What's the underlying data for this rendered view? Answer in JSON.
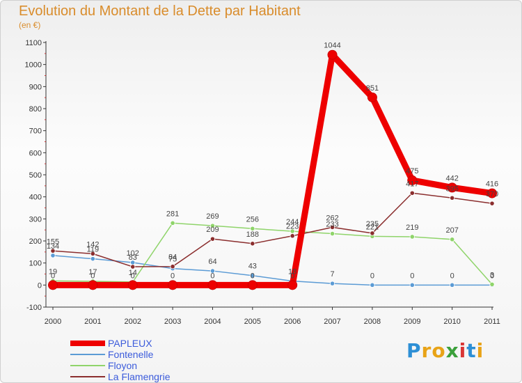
{
  "chart_data": {
    "type": "line",
    "title": "Evolution du Montant de la Dette par Habitant",
    "subtitle": "(en €)",
    "x": [
      "2000",
      "2001",
      "2002",
      "2003",
      "2004",
      "2005",
      "2006",
      "2007",
      "2008",
      "2009",
      "2010",
      "2011"
    ],
    "ylim": [
      -100,
      1100
    ],
    "yticks": [
      -100,
      0,
      100,
      200,
      300,
      400,
      500,
      600,
      700,
      800,
      900,
      1000,
      1100
    ],
    "grid": false,
    "legend": "bottom-left",
    "series": [
      {
        "name": "Fontenelle",
        "color": "#5b9bd5",
        "values": [
          134,
          119,
          102,
          75,
          64,
          43,
          18,
          7,
          0,
          0,
          0,
          0
        ],
        "labels": [
          "134",
          "119",
          "102",
          "75",
          "64",
          "43",
          "18",
          "7",
          "0",
          "0",
          "0",
          "0"
        ]
      },
      {
        "name": "Floyon",
        "color": "#8fd46a",
        "values": [
          19,
          17,
          14,
          281,
          269,
          256,
          244,
          233,
          221,
          219,
          207,
          3
        ],
        "labels": [
          "19",
          "17",
          "14",
          "281",
          "269",
          "256",
          "244",
          "233",
          "221",
          "219",
          "207",
          "3"
        ]
      },
      {
        "name": "La Flamengrie",
        "color": "#8b2e2e",
        "values": [
          155,
          142,
          83,
          84,
          209,
          188,
          223,
          262,
          235,
          417,
          395,
          370
        ],
        "labels": [
          "155",
          "142",
          "83",
          "84",
          "209",
          "188",
          "223",
          "262",
          "235",
          "417",
          "395",
          "370"
        ]
      },
      {
        "name": "PAPLEUX",
        "color": "#ee0000",
        "values": [
          0,
          0,
          0,
          0,
          0,
          0,
          0,
          1044,
          851,
          475,
          442,
          416
        ],
        "labels": [
          "0",
          "0",
          "0",
          "0",
          "0",
          "0",
          "0",
          "1044",
          "851",
          "475",
          "442",
          "416"
        ]
      }
    ],
    "legend_order": [
      "PAPLEUX",
      "Fontenelle",
      "Floyon",
      "La Flamengrie"
    ]
  },
  "logo": {
    "text": "Proxiti"
  }
}
